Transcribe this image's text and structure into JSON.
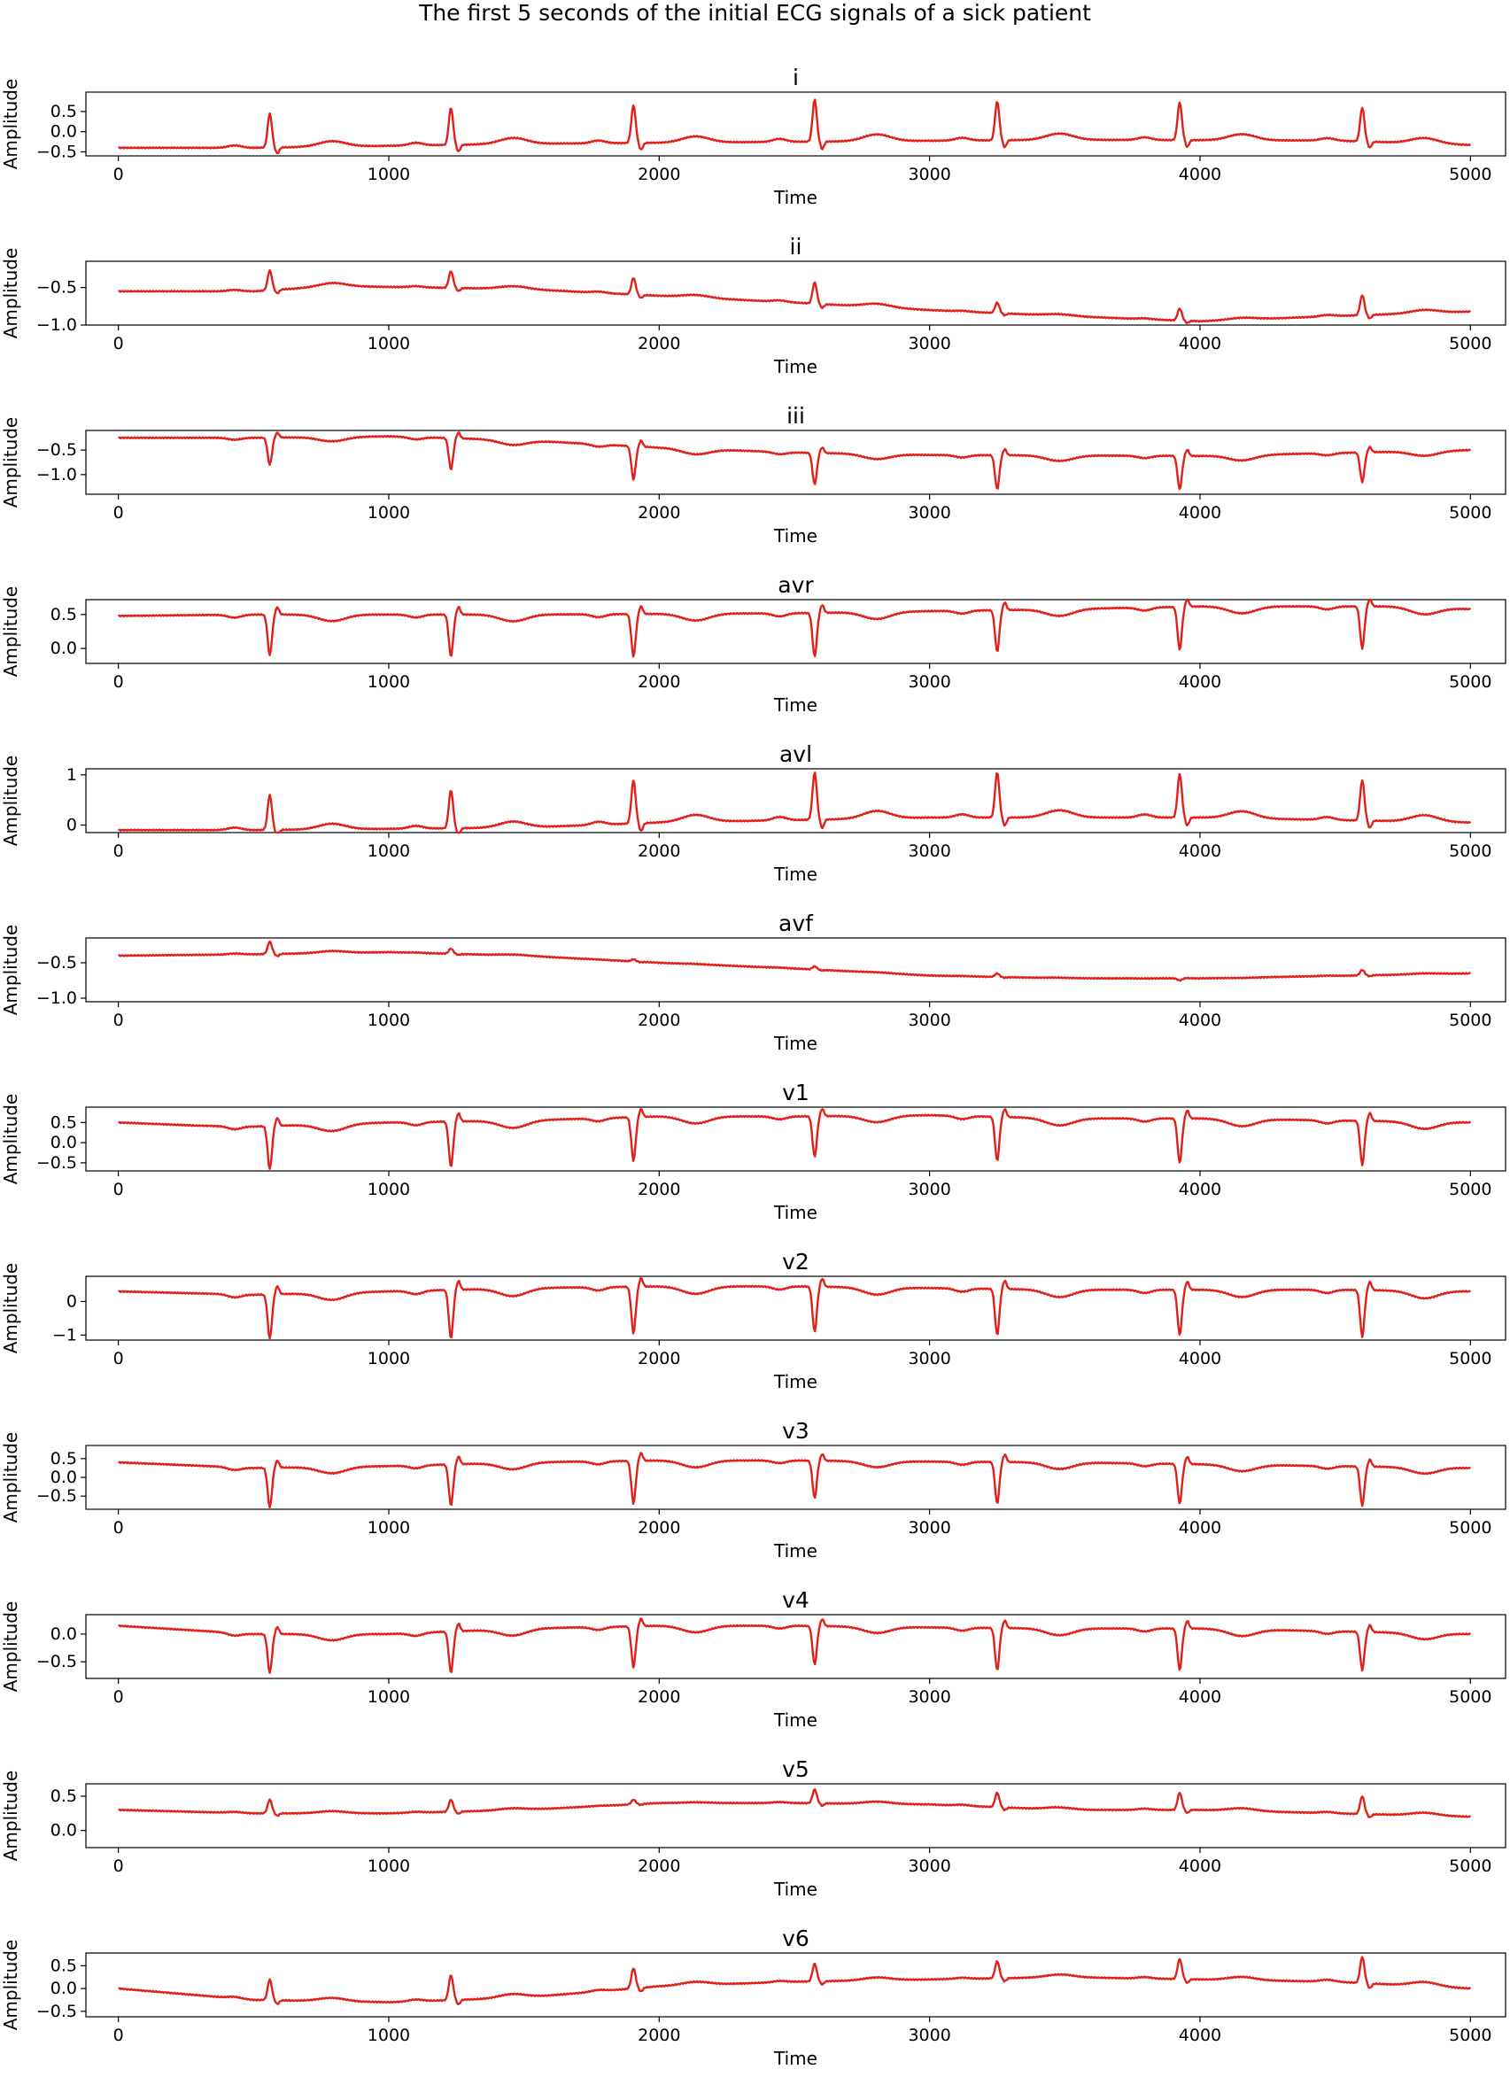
{
  "figure_title": "The first 5 seconds of the initial ECG signals of a sick patient",
  "chart_data": {
    "type": "line",
    "line_color": "#e0201b",
    "x_axis": {
      "label": "Time",
      "range": [
        -120,
        5130
      ],
      "ticks": [
        0,
        1000,
        2000,
        3000,
        4000,
        5000
      ]
    },
    "y_label": "Amplitude",
    "beat_times": [
      560,
      1230,
      1905,
      2575,
      3250,
      3925,
      4600
    ],
    "panels": [
      {
        "title": "i",
        "ylim": [
          -0.6,
          0.98
        ],
        "yticks": [
          -0.5,
          0.0,
          0.5
        ],
        "ytick_labels": [
          "−0.5",
          "0.0",
          "0.5"
        ],
        "baseline": [
          [
            0,
            -0.4
          ],
          [
            500,
            -0.4
          ],
          [
            1500,
            -0.3
          ],
          [
            2500,
            -0.25
          ],
          [
            3500,
            -0.2
          ],
          [
            4500,
            -0.22
          ],
          [
            5000,
            -0.33
          ]
        ],
        "r_peaks": [
          0.45,
          0.6,
          0.67,
          0.8,
          0.75,
          0.73,
          0.6
        ]
      },
      {
        "title": "ii",
        "ylim": [
          -1.0,
          -0.15
        ],
        "yticks": [
          -1.0,
          -0.5
        ],
        "ytick_labels": [
          "−1.0",
          "−0.5"
        ],
        "baseline": [
          [
            0,
            -0.55
          ],
          [
            500,
            -0.55
          ],
          [
            800,
            -0.48
          ],
          [
            1500,
            -0.52
          ],
          [
            2500,
            -0.7
          ],
          [
            3000,
            -0.8
          ],
          [
            3500,
            -0.88
          ],
          [
            4000,
            -0.95
          ],
          [
            4500,
            -0.88
          ],
          [
            5000,
            -0.82
          ]
        ],
        "r_peaks": [
          -0.27,
          -0.28,
          -0.37,
          -0.43,
          -0.7,
          -0.78,
          -0.6
        ]
      },
      {
        "title": "iii",
        "ylim": [
          -1.4,
          -0.1
        ],
        "yticks": [
          -1.0,
          -0.5
        ],
        "ytick_labels": [
          "−1.0",
          "−0.5"
        ],
        "baseline": [
          [
            0,
            -0.25
          ],
          [
            500,
            -0.25
          ],
          [
            1000,
            -0.22
          ],
          [
            1500,
            -0.3
          ],
          [
            2000,
            -0.45
          ],
          [
            2500,
            -0.55
          ],
          [
            3000,
            -0.6
          ],
          [
            4000,
            -0.62
          ],
          [
            5000,
            -0.5
          ]
        ],
        "r_peaks": [
          -0.8,
          -0.9,
          -1.1,
          -1.2,
          -1.3,
          -1.3,
          -1.15
        ]
      },
      {
        "title": "avr",
        "ylim": [
          -0.22,
          0.72
        ],
        "yticks": [
          0.0,
          0.5
        ],
        "ytick_labels": [
          "0.0",
          "0.5"
        ],
        "baseline": [
          [
            0,
            0.48
          ],
          [
            500,
            0.5
          ],
          [
            1500,
            0.5
          ],
          [
            2500,
            0.52
          ],
          [
            3000,
            0.55
          ],
          [
            3500,
            0.58
          ],
          [
            4000,
            0.62
          ],
          [
            4700,
            0.62
          ],
          [
            5000,
            0.58
          ]
        ],
        "r_peaks": [
          -0.1,
          -0.12,
          -0.12,
          -0.12,
          -0.05,
          -0.02,
          0.0
        ]
      },
      {
        "title": "avl",
        "ylim": [
          -0.15,
          1.12
        ],
        "yticks": [
          0,
          1
        ],
        "ytick_labels": [
          "0",
          "1"
        ],
        "baseline": [
          [
            0,
            -0.1
          ],
          [
            500,
            -0.1
          ],
          [
            1500,
            -0.05
          ],
          [
            2000,
            0.05
          ],
          [
            3000,
            0.15
          ],
          [
            4000,
            0.15
          ],
          [
            5000,
            0.05
          ]
        ],
        "r_peaks": [
          0.6,
          0.7,
          0.9,
          1.05,
          1.05,
          1.02,
          0.9
        ]
      },
      {
        "title": "avf",
        "ylim": [
          -1.05,
          -0.15
        ],
        "yticks": [
          -1.0,
          -0.5
        ],
        "ytick_labels": [
          "−1.0",
          "−0.5"
        ],
        "baseline": [
          [
            0,
            -0.4
          ],
          [
            500,
            -0.38
          ],
          [
            1000,
            -0.35
          ],
          [
            1500,
            -0.4
          ],
          [
            2000,
            -0.5
          ],
          [
            2500,
            -0.58
          ],
          [
            3000,
            -0.68
          ],
          [
            3500,
            -0.72
          ],
          [
            4000,
            -0.72
          ],
          [
            5000,
            -0.65
          ]
        ],
        "r_peaks": [
          -0.2,
          -0.3,
          -0.45,
          -0.55,
          -0.65,
          -0.75,
          -0.6
        ]
      },
      {
        "title": "v1",
        "ylim": [
          -0.7,
          0.88
        ],
        "yticks": [
          -0.5,
          0.0,
          0.5
        ],
        "ytick_labels": [
          "−0.5",
          "0.0",
          "0.5"
        ],
        "baseline": [
          [
            0,
            0.5
          ],
          [
            300,
            0.42
          ],
          [
            500,
            0.4
          ],
          [
            1000,
            0.5
          ],
          [
            1500,
            0.55
          ],
          [
            2000,
            0.65
          ],
          [
            2500,
            0.65
          ],
          [
            3000,
            0.68
          ],
          [
            3500,
            0.6
          ],
          [
            4000,
            0.6
          ],
          [
            4500,
            0.55
          ],
          [
            5000,
            0.5
          ]
        ],
        "r_peaks": [
          -0.65,
          -0.6,
          -0.45,
          -0.35,
          -0.45,
          -0.5,
          -0.55
        ]
      },
      {
        "title": "v2",
        "ylim": [
          -1.15,
          0.75
        ],
        "yticks": [
          -1,
          0
        ],
        "ytick_labels": [
          "−1",
          "0"
        ],
        "baseline": [
          [
            0,
            0.3
          ],
          [
            500,
            0.2
          ],
          [
            1000,
            0.3
          ],
          [
            1500,
            0.4
          ],
          [
            2000,
            0.45
          ],
          [
            2500,
            0.45
          ],
          [
            3000,
            0.4
          ],
          [
            3500,
            0.35
          ],
          [
            4000,
            0.35
          ],
          [
            4500,
            0.35
          ],
          [
            5000,
            0.3
          ]
        ],
        "r_peaks": [
          -1.1,
          -1.1,
          -0.95,
          -0.9,
          -1.0,
          -1.0,
          -1.05
        ]
      },
      {
        "title": "v3",
        "ylim": [
          -0.85,
          0.85
        ],
        "yticks": [
          -0.5,
          0.0,
          0.5
        ],
        "ytick_labels": [
          "−0.5",
          "0.0",
          "0.5"
        ],
        "baseline": [
          [
            0,
            0.4
          ],
          [
            500,
            0.25
          ],
          [
            1000,
            0.3
          ],
          [
            1500,
            0.4
          ],
          [
            2000,
            0.45
          ],
          [
            2500,
            0.45
          ],
          [
            3000,
            0.42
          ],
          [
            3500,
            0.4
          ],
          [
            4000,
            0.35
          ],
          [
            4500,
            0.3
          ],
          [
            5000,
            0.25
          ]
        ],
        "r_peaks": [
          -0.8,
          -0.75,
          -0.7,
          -0.55,
          -0.7,
          -0.7,
          -0.75
        ]
      },
      {
        "title": "v4",
        "ylim": [
          -0.8,
          0.35
        ],
        "yticks": [
          -0.5,
          0.0
        ],
        "ytick_labels": [
          "−0.5",
          "0.0"
        ],
        "baseline": [
          [
            0,
            0.15
          ],
          [
            500,
            0.0
          ],
          [
            1000,
            0.0
          ],
          [
            1500,
            0.1
          ],
          [
            2000,
            0.15
          ],
          [
            2500,
            0.15
          ],
          [
            3000,
            0.12
          ],
          [
            3500,
            0.1
          ],
          [
            4000,
            0.1
          ],
          [
            4500,
            0.05
          ],
          [
            5000,
            0.0
          ]
        ],
        "r_peaks": [
          -0.7,
          -0.7,
          -0.6,
          -0.55,
          -0.65,
          -0.65,
          -0.65
        ]
      },
      {
        "title": "v5",
        "ylim": [
          -0.25,
          0.68
        ],
        "yticks": [
          0.0,
          0.5
        ],
        "ytick_labels": [
          "0.0",
          "0.5"
        ],
        "baseline": [
          [
            0,
            0.3
          ],
          [
            500,
            0.25
          ],
          [
            1000,
            0.25
          ],
          [
            1500,
            0.3
          ],
          [
            2000,
            0.4
          ],
          [
            2500,
            0.4
          ],
          [
            3000,
            0.38
          ],
          [
            3500,
            0.3
          ],
          [
            4000,
            0.3
          ],
          [
            4500,
            0.25
          ],
          [
            5000,
            0.2
          ]
        ],
        "r_peaks": [
          0.45,
          0.45,
          0.45,
          0.6,
          0.55,
          0.55,
          0.5
        ]
      },
      {
        "title": "v6",
        "ylim": [
          -0.62,
          0.78
        ],
        "yticks": [
          -0.5,
          0.0,
          0.5
        ],
        "ytick_labels": [
          "−0.5",
          "0.0",
          "0.5"
        ],
        "baseline": [
          [
            0,
            0.0
          ],
          [
            500,
            -0.25
          ],
          [
            1000,
            -0.3
          ],
          [
            1500,
            -0.2
          ],
          [
            2000,
            0.05
          ],
          [
            2500,
            0.15
          ],
          [
            3000,
            0.2
          ],
          [
            3500,
            0.25
          ],
          [
            4000,
            0.2
          ],
          [
            4500,
            0.15
          ],
          [
            5000,
            0.0
          ]
        ],
        "r_peaks": [
          0.2,
          0.3,
          0.45,
          0.55,
          0.6,
          0.65,
          0.7
        ]
      }
    ]
  }
}
